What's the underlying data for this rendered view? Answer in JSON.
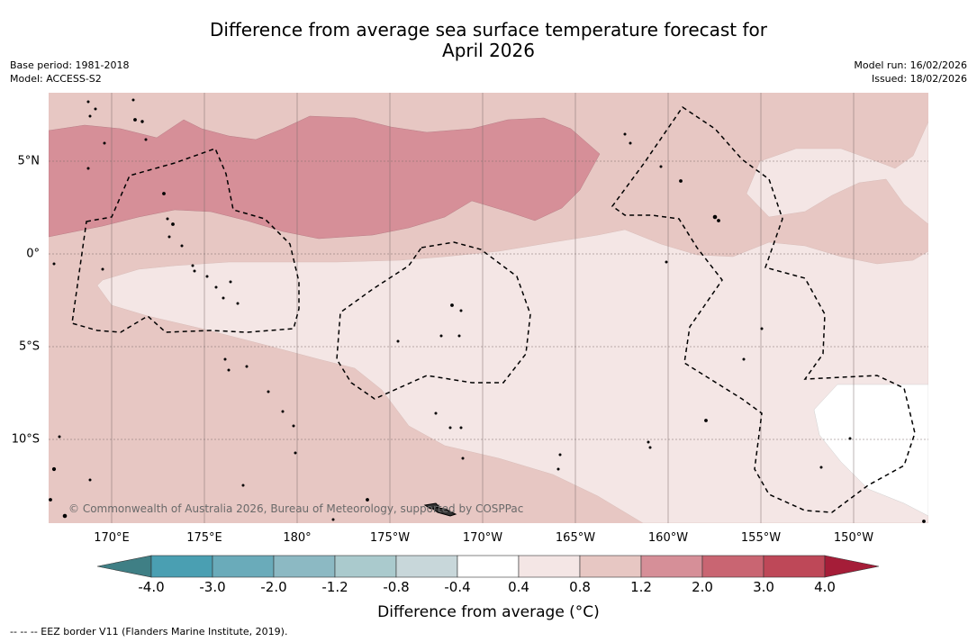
{
  "title_line1": "Difference from average sea surface temperature forecast for",
  "title_line2": "April 2026",
  "base_period": "Base period: 1981-2018",
  "model": "Model: ACCESS-S2",
  "model_run": "Model run: 16/02/2026",
  "issued": "Issued: 18/02/2026",
  "lon_labels": [
    "170°E",
    "175°E",
    "180°",
    "175°W",
    "170°W",
    "165°W",
    "160°W",
    "155°W",
    "150°W"
  ],
  "lat_labels": [
    "5°N",
    "0°",
    "5°S",
    "10°S"
  ],
  "colorbar_ticks": [
    "-4.0",
    "-3.0",
    "-2.0",
    "-1.2",
    "-0.8",
    "-0.4",
    "0.4",
    "0.8",
    "1.2",
    "2.0",
    "3.0",
    "4.0"
  ],
  "colorbar_colors": [
    "#4a9fb2",
    "#6aabba",
    "#8cb9c3",
    "#aacacd",
    "#c8d7da",
    "#ffffff",
    "#f4e6e5",
    "#e7c7c3",
    "#d68f98",
    "#c96572",
    "#be4858"
  ],
  "colorbar_under_color": "#3f7f85",
  "colorbar_over_color": "#a51d38",
  "colorbar_label": "Difference from average (°C)",
  "footnote": "--  --  -- EEZ border V11 (Flanders Marine Institute, 2019).",
  "copyright": "© Commonwealth of Australia 2026, Bureau of Meteorology, supported by COSPPac"
}
